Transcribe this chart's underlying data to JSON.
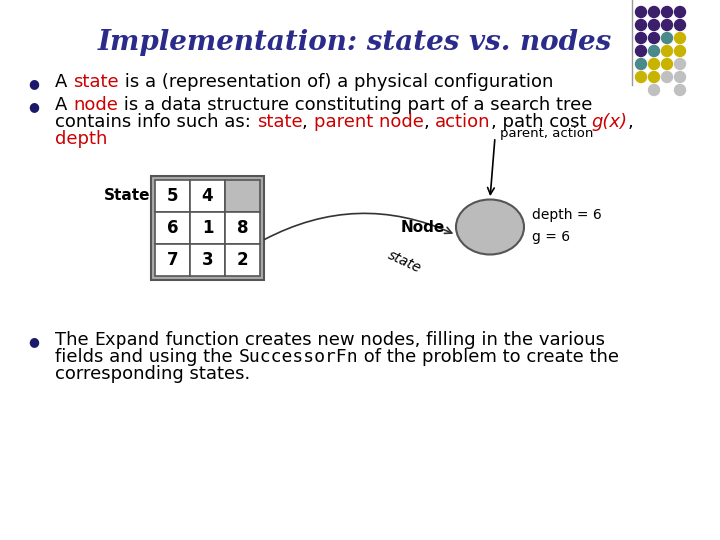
{
  "title": "Implementation: states vs. nodes",
  "title_color": "#2B2B8B",
  "title_fontsize": 20,
  "bg_color": "#FFFFFF",
  "grid_values": [
    [
      "5",
      "4",
      ""
    ],
    [
      "6",
      "1",
      "8"
    ],
    [
      "7",
      "3",
      "2"
    ]
  ],
  "dot_grid": [
    [
      "#3B1F6B",
      "#3B1F6B",
      "#3B1F6B",
      "#3B1F6B"
    ],
    [
      "#3B1F6B",
      "#3B1F6B",
      "#3B1F6B",
      "#3B1F6B"
    ],
    [
      "#3B1F6B",
      "#3B1F6B",
      "#4A8A8A",
      "#C8B400"
    ],
    [
      "#3B1F6B",
      "#4A8A8A",
      "#C8B400",
      "#C8B400"
    ],
    [
      "#4A8A8A",
      "#C8B400",
      "#C8B400",
      "#C0C0C0"
    ],
    [
      "#C8B400",
      "#C8B400",
      "#C0C0C0",
      "#C0C0C0"
    ],
    [
      "#C0C0C0",
      "#C0C0C0",
      "",
      ""
    ]
  ]
}
